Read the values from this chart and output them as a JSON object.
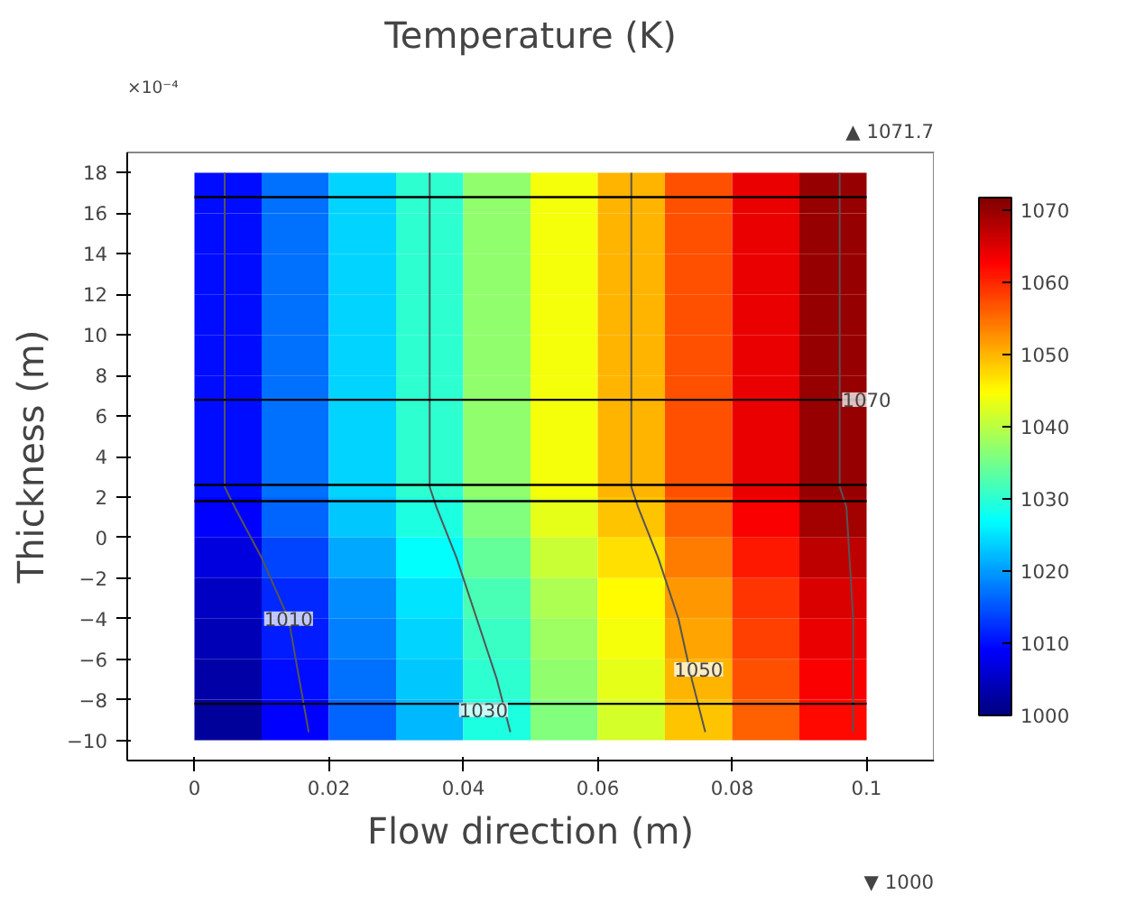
{
  "chart_data": {
    "type": "heatmap",
    "title": "Temperature (K)",
    "xlabel": "Flow direction (m)",
    "ylabel": "Thickness (m)",
    "x": [
      0.005,
      0.015,
      0.025,
      0.035,
      0.045,
      0.055,
      0.065,
      0.075,
      0.085,
      0.095
    ],
    "y": [
      17,
      15,
      13,
      11,
      9,
      7,
      5,
      3,
      1,
      -1,
      -3,
      -5,
      -7,
      -9
    ],
    "cells": [
      [
        1010,
        1017,
        1024,
        1030,
        1037,
        1044,
        1050,
        1057,
        1064,
        1070
      ],
      [
        1010,
        1017,
        1024,
        1030,
        1037,
        1044,
        1050,
        1057,
        1064,
        1070
      ],
      [
        1010,
        1017,
        1024,
        1030,
        1037,
        1044,
        1050,
        1057,
        1064,
        1070
      ],
      [
        1010,
        1017,
        1024,
        1030,
        1037,
        1044,
        1050,
        1057,
        1064,
        1070
      ],
      [
        1010,
        1017,
        1024,
        1030,
        1037,
        1044,
        1050,
        1057,
        1064,
        1070
      ],
      [
        1010,
        1017,
        1024,
        1030,
        1037,
        1044,
        1050,
        1057,
        1064,
        1070
      ],
      [
        1010,
        1017,
        1024,
        1030,
        1037,
        1044,
        1050,
        1057,
        1064,
        1070
      ],
      [
        1010,
        1017,
        1024,
        1030,
        1037,
        1044,
        1050,
        1057,
        1064,
        1070
      ],
      [
        1009,
        1016,
        1023,
        1029,
        1036,
        1043,
        1049,
        1056,
        1063,
        1069
      ],
      [
        1007,
        1014,
        1021,
        1027,
        1034,
        1041,
        1047,
        1054,
        1061,
        1067
      ],
      [
        1005,
        1012,
        1019,
        1025,
        1032,
        1039,
        1045,
        1052,
        1059,
        1065
      ],
      [
        1004,
        1011,
        1018,
        1024,
        1031,
        1038,
        1044,
        1051,
        1058,
        1064
      ],
      [
        1003,
        1010,
        1017,
        1023,
        1030,
        1037,
        1043,
        1050,
        1057,
        1063
      ],
      [
        1002,
        1009,
        1016,
        1022,
        1029,
        1036,
        1042,
        1049,
        1056,
        1062
      ]
    ],
    "clim": [
      1000,
      1071.7
    ],
    "cticks": [
      1000,
      1010,
      1020,
      1030,
      1040,
      1050,
      1060,
      1070
    ],
    "series": [
      {
        "type": "line",
        "color": "#555555",
        "x": [
          0.0045,
          0.0045,
          0.006,
          0.01,
          0.014,
          0.017
        ],
        "values": [
          18,
          2.5,
          1.5,
          -1,
          -4,
          -9.6
        ]
      },
      {
        "type": "line",
        "color": "#555555",
        "x": [
          0.035,
          0.035,
          0.035,
          0.036,
          0.039,
          0.042,
          0.045,
          0.047
        ],
        "values": [
          18,
          6.8,
          2.5,
          1.5,
          -1,
          -4,
          -7,
          -9.6
        ]
      },
      {
        "type": "line",
        "color": "#555555",
        "x": [
          0.065,
          0.065,
          0.065,
          0.066,
          0.069,
          0.072,
          0.074,
          0.076
        ],
        "values": [
          18,
          6.8,
          2.5,
          1.5,
          -1,
          -4,
          -7,
          -9.6
        ]
      },
      {
        "type": "line",
        "color": "#555555",
        "x": [
          0.096,
          0.096,
          0.096,
          0.097,
          0.098,
          0.098
        ],
        "values": [
          18,
          6.8,
          2.5,
          1.5,
          -4,
          -9.6
        ]
      }
    ],
    "ref_lines": [
      {
        "axis": "y",
        "value": 16.8,
        "color": "#000000"
      },
      {
        "axis": "y",
        "value": 6.8,
        "color": "#000000"
      },
      {
        "axis": "y",
        "value": 2.6,
        "color": "#000000"
      },
      {
        "axis": "y",
        "value": 1.8,
        "color": "#000000"
      },
      {
        "axis": "y",
        "value": -8.2,
        "color": "#000000"
      }
    ],
    "annotations": [
      "×10⁻⁴",
      "▲ 1071.7",
      "▼ 1000",
      {
        "text": "1010",
        "x": 0.014,
        "y": -4
      },
      {
        "text": "1030",
        "x": 0.043,
        "y": -8.5
      },
      {
        "text": "1050",
        "x": 0.075,
        "y": -6.5
      },
      {
        "text": "1070",
        "x": 0.1,
        "y": 6.8
      }
    ],
    "xlim": [
      -0.01,
      0.11
    ],
    "xticks": [
      0,
      0.02,
      0.04,
      0.06,
      0.08,
      0.1
    ],
    "ylim": [
      -11,
      19
    ],
    "yticks": [
      -10,
      -8,
      -6,
      -4,
      -2,
      0,
      2,
      4,
      6,
      8,
      10,
      12,
      14,
      16,
      18
    ],
    "grid": false
  }
}
